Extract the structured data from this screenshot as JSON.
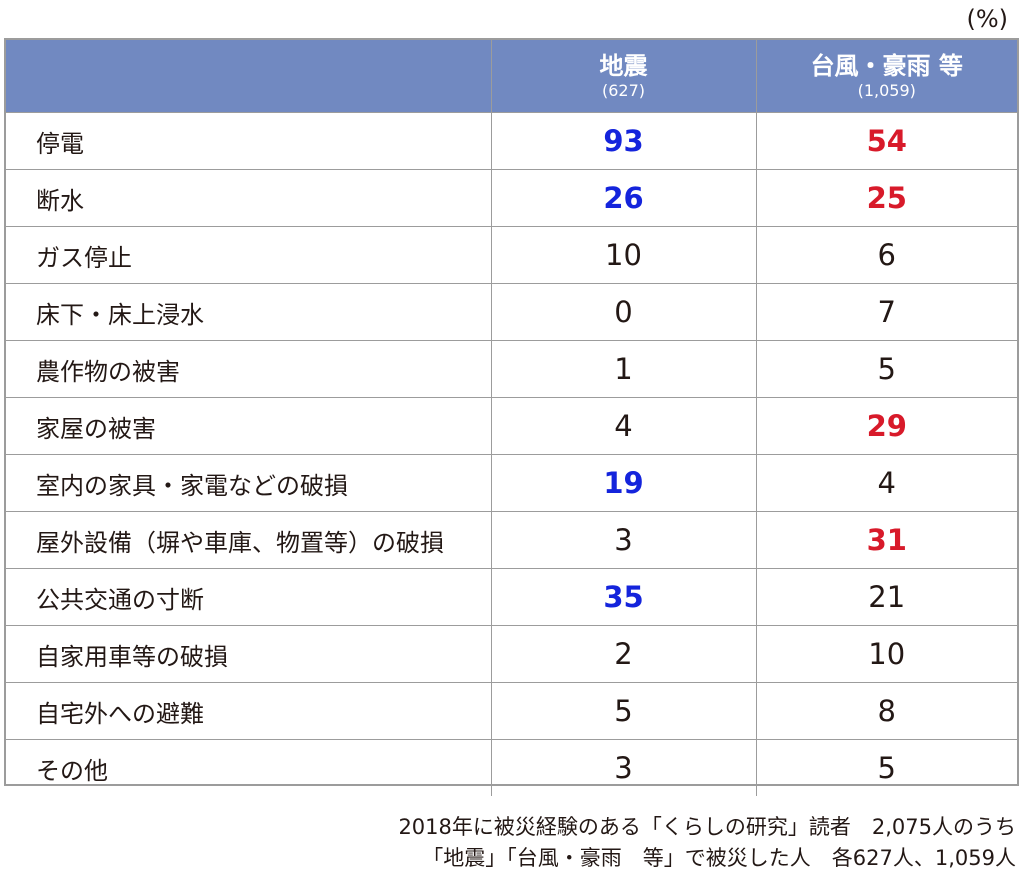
{
  "unit_label": "(%)",
  "colors": {
    "header_bg": "#7189c1",
    "highlight_earthquake": "#1424dc",
    "highlight_typhoon": "#d81a2a",
    "grid": "#9c9c9c"
  },
  "chart_data": {
    "type": "table",
    "unit": "(%)",
    "columns": [
      {
        "name": "地震",
        "n": "(627)"
      },
      {
        "name": "台風・豪雨 等",
        "n": "(1,059)"
      }
    ],
    "categories": [
      "停電",
      "断水",
      "ガス停止",
      "床下・床上浸水",
      "農作物の被害",
      "家屋の被害",
      "室内の家具・家電などの破損",
      "屋外設備（塀や車庫、物置等）の破損",
      "公共交通の寸断",
      "自家用車等の破損",
      "自宅外への避難",
      "その他"
    ],
    "series": [
      {
        "name": "地震",
        "values": [
          93,
          26,
          10,
          0,
          1,
          4,
          19,
          3,
          35,
          2,
          5,
          3
        ]
      },
      {
        "name": "台風・豪雨 等",
        "values": [
          54,
          25,
          6,
          7,
          5,
          29,
          4,
          31,
          21,
          10,
          8,
          5
        ]
      }
    ],
    "highlighted": {
      "地震": [
        0,
        1,
        6,
        8
      ],
      "台風・豪雨 等": [
        0,
        1,
        5,
        7
      ]
    }
  },
  "note": {
    "line1": "2018年に被災経験のある「くらしの研究」読者　2,075人のうち",
    "line2": "「地震」「台風・豪雨　等」で被災した人　各627人、1,059人"
  }
}
